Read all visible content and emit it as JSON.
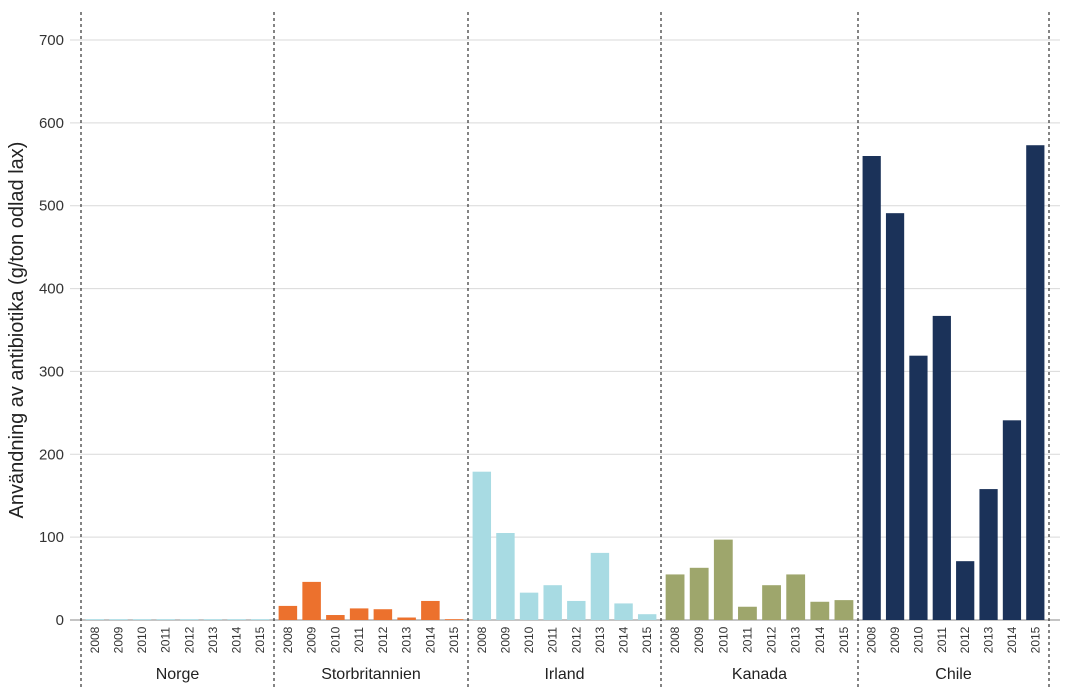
{
  "chart_data": {
    "type": "bar",
    "title": "",
    "xlabel": "",
    "ylabel": "Användning av antibiotika (g/ton odlad lax)",
    "ylim": [
      0,
      700
    ],
    "yticks": [
      0,
      100,
      200,
      300,
      400,
      500,
      600,
      700
    ],
    "grid": true,
    "years": [
      "2008",
      "2009",
      "2010",
      "2011",
      "2012",
      "2013",
      "2014",
      "2015"
    ],
    "groups": [
      {
        "name": "Norge",
        "color": "#a8dbe3",
        "values": [
          1,
          1,
          1,
          1,
          1,
          1,
          1,
          1
        ]
      },
      {
        "name": "Storbritannien",
        "color": "#ec712d",
        "values": [
          17,
          46,
          6,
          14,
          13,
          3,
          23,
          1
        ]
      },
      {
        "name": "Irland",
        "color": "#a8dbe3",
        "values": [
          179,
          105,
          33,
          42,
          23,
          81,
          20,
          7
        ]
      },
      {
        "name": "Kanada",
        "color": "#9ea66c",
        "values": [
          55,
          63,
          97,
          16,
          42,
          55,
          22,
          24
        ]
      },
      {
        "name": "Chile",
        "color": "#1b3259",
        "values": [
          560,
          491,
          319,
          367,
          71,
          158,
          241,
          573
        ]
      }
    ]
  }
}
